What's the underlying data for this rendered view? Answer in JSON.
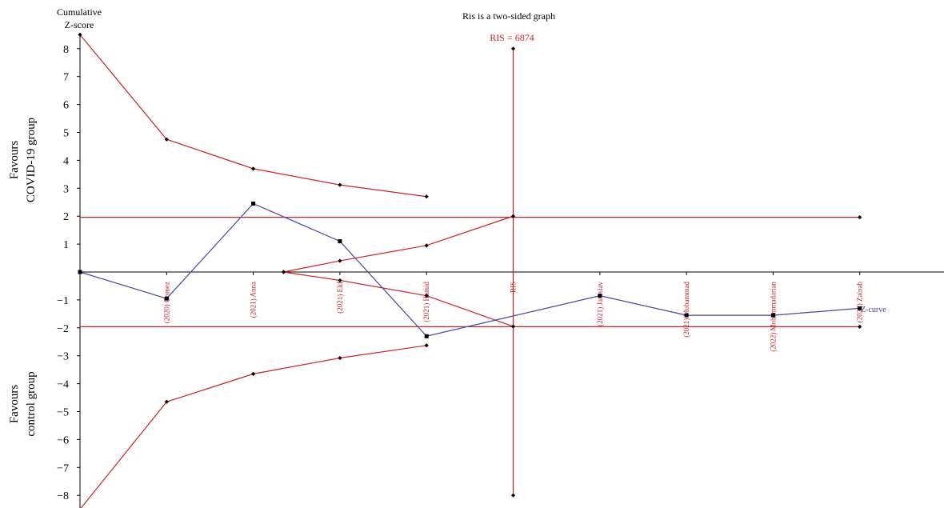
{
  "chart_data": {
    "type": "line",
    "title": "Ris is a two-sided graph",
    "ylabel_top": "Cumulative",
    "ylabel_bottom": "Z-score",
    "side_label_top_line1": "Favours",
    "side_label_top_line2": "COVID-19 group",
    "side_label_bottom_line1": "Favours",
    "side_label_bottom_line2": "control group",
    "ris_label": "RIS = 6874",
    "z_curve_label": "Z-curve",
    "ylim": [
      -8.5,
      8.5
    ],
    "y_ticks": [
      "8",
      "7",
      "6",
      "5",
      "4",
      "3",
      "2",
      "1",
      "−1",
      "−2",
      "−3",
      "−4",
      "−5",
      "−6",
      "−7",
      "−8"
    ],
    "y_tick_values": [
      8,
      7,
      6,
      5,
      4,
      3,
      2,
      1,
      -1,
      -2,
      -3,
      -4,
      -5,
      -6,
      -7,
      -8
    ],
    "x_positions": [
      0,
      1,
      2,
      3,
      4,
      5,
      6,
      7,
      8,
      9
    ],
    "x_labels": [
      "",
      "(2020) Gomez",
      "(2021) Anna",
      "(2021) Elif",
      "(2021) Hamid",
      "RIS",
      "(2021) Jaroslav",
      "(2021) Mohammad",
      "(2022) Mohammadarian",
      "(2022) Zainab"
    ],
    "colors": {
      "boundary": "#cc2222",
      "zcurve": "#4444aa",
      "axis": "#000000"
    },
    "series": [
      {
        "name": "Z-curve",
        "x": [
          0,
          1,
          2,
          3,
          4,
          6,
          7,
          8,
          9
        ],
        "y": [
          0,
          -0.95,
          2.45,
          1.1,
          -2.3,
          -0.85,
          -1.55,
          -1.55,
          -1.3
        ]
      }
    ],
    "boundaries": {
      "upper_benefit": {
        "x": [
          0,
          1,
          2,
          3,
          4
        ],
        "y": [
          8.5,
          4.75,
          3.7,
          3.12,
          2.7
        ]
      },
      "lower_benefit": {
        "x": [
          0,
          1,
          2,
          3,
          4
        ],
        "y": [
          -8.5,
          -4.65,
          -3.65,
          -3.08,
          -2.63
        ]
      },
      "upper_futility": {
        "x": [
          2.35,
          3,
          4,
          5
        ],
        "y": [
          0,
          0.4,
          0.95,
          2.0
        ]
      },
      "lower_futility": {
        "x": [
          2.35,
          3,
          4,
          5
        ],
        "y": [
          0,
          -0.3,
          -0.85,
          -1.95
        ]
      },
      "conventional": [
        1.96,
        -1.96
      ],
      "conventional_x_range": [
        0,
        9
      ],
      "ris_x": 5,
      "ris_range": [
        -8,
        8
      ]
    }
  }
}
